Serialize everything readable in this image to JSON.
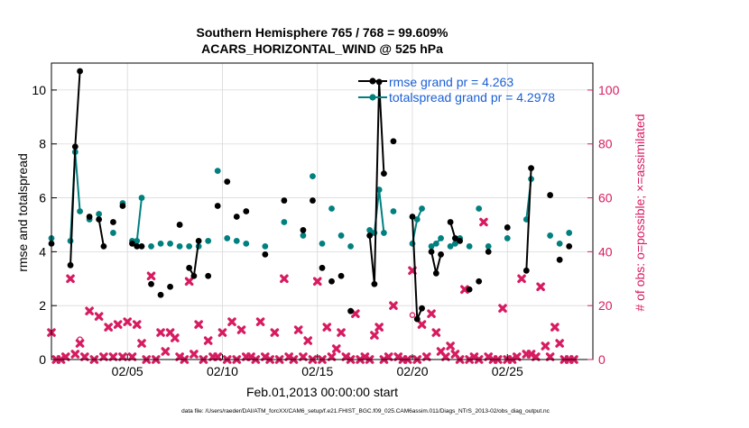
{
  "chart_data": {
    "type": "scatter",
    "title_line1": "Southern Hemisphere 765 / 768 = 99.609%",
    "title_line2": "ACARS_HORIZONTAL_WIND @ 525 hPa",
    "xlabel": "Feb.01,2013 00:00:00 start",
    "ylabel_left": "rmse and totalspread",
    "ylabel_right": "# of obs: o=possible; ×=assimilated",
    "xlim": [
      1,
      29.5
    ],
    "ylim_left": [
      0,
      11
    ],
    "ylim_right": [
      0,
      110
    ],
    "x_ticks": [
      {
        "x": 5,
        "label": "02/05"
      },
      {
        "x": 10,
        "label": "02/10"
      },
      {
        "x": 15,
        "label": "02/15"
      },
      {
        "x": 20,
        "label": "02/20"
      },
      {
        "x": 25,
        "label": "02/25"
      }
    ],
    "y_ticks_left": [
      "0",
      "2",
      "4",
      "6",
      "8",
      "10"
    ],
    "y_ticks_right": [
      "0",
      "20",
      "40",
      "60",
      "80",
      "100"
    ],
    "grid": true,
    "legend_position": "top-right",
    "colors": {
      "rmse": "#000000",
      "spread": "#00807f",
      "obs": "#d81b60",
      "axis_right": "#d81b60"
    },
    "series": [
      {
        "name": "rmse grand pr = 4.263",
        "color": "#000000",
        "axis": "left",
        "points": [
          [
            1.0,
            4.3
          ],
          [
            2.0,
            3.5
          ],
          [
            2.25,
            7.9
          ],
          [
            2.5,
            10.7
          ],
          [
            3.0,
            5.3
          ],
          [
            3.5,
            5.2
          ],
          [
            3.75,
            4.2
          ],
          [
            4.25,
            5.1
          ],
          [
            4.75,
            5.7
          ],
          [
            5.25,
            4.3
          ],
          [
            5.5,
            4.2
          ],
          [
            5.75,
            4.2
          ],
          [
            6.25,
            2.8
          ],
          [
            6.75,
            2.4
          ],
          [
            7.25,
            2.7
          ],
          [
            7.75,
            5.0
          ],
          [
            8.25,
            3.4
          ],
          [
            8.5,
            3.1
          ],
          [
            8.75,
            4.4
          ],
          [
            9.25,
            3.1
          ],
          [
            9.75,
            5.7
          ],
          [
            10.25,
            6.6
          ],
          [
            10.75,
            5.3
          ],
          [
            11.25,
            5.5
          ],
          [
            12.25,
            3.9
          ],
          [
            13.25,
            5.9
          ],
          [
            14.25,
            4.8
          ],
          [
            14.75,
            5.9
          ],
          [
            15.25,
            3.4
          ],
          [
            15.75,
            2.9
          ],
          [
            16.25,
            3.1
          ],
          [
            16.75,
            1.8
          ],
          [
            17.75,
            4.6
          ],
          [
            18.0,
            2.8
          ],
          [
            18.25,
            10.3
          ],
          [
            18.5,
            6.9
          ],
          [
            19.0,
            8.1
          ],
          [
            20.0,
            5.3
          ],
          [
            20.25,
            1.5
          ],
          [
            20.5,
            1.9
          ],
          [
            21.0,
            4.0
          ],
          [
            21.25,
            3.2
          ],
          [
            21.5,
            3.9
          ],
          [
            22.0,
            5.1
          ],
          [
            22.25,
            4.5
          ],
          [
            22.5,
            4.4
          ],
          [
            23.0,
            2.6
          ],
          [
            23.5,
            2.9
          ],
          [
            24.0,
            4.0
          ],
          [
            25.0,
            4.9
          ],
          [
            26.0,
            3.3
          ],
          [
            26.25,
            7.1
          ],
          [
            27.25,
            6.1
          ],
          [
            27.75,
            3.7
          ],
          [
            28.25,
            4.2
          ]
        ]
      },
      {
        "name": "totalspread grand pr = 4.2978",
        "color": "#00807f",
        "axis": "left",
        "points": [
          [
            1.0,
            4.5
          ],
          [
            2.0,
            4.4
          ],
          [
            2.25,
            7.7
          ],
          [
            2.5,
            5.5
          ],
          [
            3.0,
            5.2
          ],
          [
            3.5,
            5.4
          ],
          [
            4.25,
            4.7
          ],
          [
            4.75,
            5.8
          ],
          [
            5.25,
            4.4
          ],
          [
            5.5,
            4.4
          ],
          [
            5.75,
            6.0
          ],
          [
            6.25,
            4.2
          ],
          [
            6.75,
            4.3
          ],
          [
            7.25,
            4.3
          ],
          [
            7.75,
            4.2
          ],
          [
            8.25,
            4.2
          ],
          [
            8.75,
            4.2
          ],
          [
            9.25,
            4.4
          ],
          [
            9.75,
            7.0
          ],
          [
            10.25,
            4.5
          ],
          [
            10.75,
            4.4
          ],
          [
            11.25,
            4.3
          ],
          [
            12.25,
            4.2
          ],
          [
            13.25,
            5.1
          ],
          [
            14.25,
            4.6
          ],
          [
            14.75,
            6.8
          ],
          [
            15.25,
            4.3
          ],
          [
            15.75,
            5.6
          ],
          [
            16.25,
            4.6
          ],
          [
            16.75,
            4.2
          ],
          [
            17.75,
            4.8
          ],
          [
            18.0,
            4.7
          ],
          [
            18.25,
            6.3
          ],
          [
            18.5,
            4.7
          ],
          [
            19.0,
            5.5
          ],
          [
            20.0,
            4.3
          ],
          [
            20.25,
            5.2
          ],
          [
            20.5,
            5.6
          ],
          [
            21.0,
            4.2
          ],
          [
            21.25,
            4.3
          ],
          [
            21.5,
            4.5
          ],
          [
            22.0,
            4.2
          ],
          [
            22.25,
            4.3
          ],
          [
            22.5,
            4.5
          ],
          [
            23.0,
            4.2
          ],
          [
            23.5,
            5.6
          ],
          [
            24.0,
            4.2
          ],
          [
            25.0,
            4.5
          ],
          [
            26.0,
            5.2
          ],
          [
            26.25,
            6.7
          ],
          [
            27.25,
            4.6
          ],
          [
            27.75,
            4.3
          ],
          [
            28.25,
            4.7
          ]
        ]
      },
      {
        "name": "obs possible",
        "color": "#d81b60",
        "axis": "right",
        "marker": "o",
        "points": [
          [
            2.5,
            7.5
          ],
          [
            20.0,
            16.5
          ]
        ]
      },
      {
        "name": "obs assimilated",
        "color": "#d81b60",
        "axis": "right",
        "marker": "x",
        "points": [
          [
            1.0,
            10
          ],
          [
            1.25,
            0
          ],
          [
            1.5,
            0
          ],
          [
            1.75,
            1
          ],
          [
            2.0,
            30
          ],
          [
            2.25,
            2
          ],
          [
            2.5,
            6
          ],
          [
            2.75,
            1
          ],
          [
            3.0,
            18
          ],
          [
            3.25,
            0
          ],
          [
            3.5,
            16
          ],
          [
            3.75,
            1
          ],
          [
            4.0,
            12
          ],
          [
            4.25,
            1
          ],
          [
            4.5,
            13
          ],
          [
            4.75,
            1
          ],
          [
            5.0,
            14
          ],
          [
            5.25,
            1
          ],
          [
            5.5,
            13
          ],
          [
            5.75,
            6
          ],
          [
            6.0,
            0
          ],
          [
            6.25,
            31
          ],
          [
            6.5,
            0
          ],
          [
            6.75,
            10
          ],
          [
            7.0,
            3
          ],
          [
            7.25,
            10
          ],
          [
            7.5,
            8
          ],
          [
            7.75,
            1
          ],
          [
            8.0,
            0
          ],
          [
            8.25,
            29
          ],
          [
            8.5,
            2
          ],
          [
            8.75,
            13
          ],
          [
            9.0,
            0
          ],
          [
            9.25,
            7
          ],
          [
            9.5,
            1
          ],
          [
            9.75,
            1
          ],
          [
            10.0,
            10
          ],
          [
            10.25,
            0
          ],
          [
            10.5,
            14
          ],
          [
            10.75,
            0
          ],
          [
            11.0,
            11
          ],
          [
            11.25,
            1
          ],
          [
            11.5,
            1
          ],
          [
            11.75,
            0
          ],
          [
            12.0,
            14
          ],
          [
            12.25,
            1
          ],
          [
            12.5,
            0
          ],
          [
            12.75,
            10
          ],
          [
            13.0,
            0
          ],
          [
            13.25,
            30
          ],
          [
            13.5,
            1
          ],
          [
            13.75,
            0
          ],
          [
            14.0,
            11
          ],
          [
            14.25,
            1
          ],
          [
            14.5,
            7
          ],
          [
            14.75,
            0
          ],
          [
            15.0,
            29
          ],
          [
            15.25,
            0
          ],
          [
            15.5,
            12
          ],
          [
            15.75,
            1
          ],
          [
            16.0,
            4
          ],
          [
            16.25,
            10
          ],
          [
            16.5,
            1
          ],
          [
            16.75,
            0
          ],
          [
            17.0,
            17
          ],
          [
            17.25,
            0
          ],
          [
            17.5,
            1
          ],
          [
            17.75,
            0
          ],
          [
            18.0,
            9
          ],
          [
            18.25,
            12
          ],
          [
            18.5,
            0
          ],
          [
            18.75,
            1
          ],
          [
            19.0,
            20
          ],
          [
            19.25,
            1
          ],
          [
            19.5,
            0
          ],
          [
            19.75,
            0
          ],
          [
            20.0,
            33
          ],
          [
            20.25,
            0
          ],
          [
            20.5,
            13
          ],
          [
            20.75,
            1
          ],
          [
            21.0,
            17
          ],
          [
            21.25,
            10
          ],
          [
            21.5,
            3
          ],
          [
            21.75,
            1
          ],
          [
            22.0,
            5
          ],
          [
            22.25,
            2
          ],
          [
            22.5,
            0
          ],
          [
            22.75,
            26
          ],
          [
            23.0,
            0
          ],
          [
            23.25,
            1
          ],
          [
            23.5,
            0
          ],
          [
            23.75,
            51
          ],
          [
            24.0,
            1
          ],
          [
            24.25,
            0
          ],
          [
            24.5,
            0
          ],
          [
            24.75,
            19
          ],
          [
            25.0,
            0
          ],
          [
            25.25,
            0
          ],
          [
            25.5,
            1
          ],
          [
            25.75,
            30
          ],
          [
            26.0,
            2
          ],
          [
            26.25,
            2
          ],
          [
            26.5,
            1
          ],
          [
            26.75,
            27
          ],
          [
            27.0,
            5
          ],
          [
            27.25,
            1
          ],
          [
            27.5,
            12
          ],
          [
            27.75,
            6
          ],
          [
            28.0,
            0
          ],
          [
            28.25,
            0
          ],
          [
            28.5,
            0
          ]
        ]
      }
    ],
    "legend": [
      {
        "label": "rmse grand pr = 4.263",
        "series": "rmse"
      },
      {
        "label": "totalspread grand pr = 4.2978",
        "series": "spread"
      }
    ]
  },
  "footer": {
    "data_file": "data file: /Users/raeder/DAI/ATM_forcXX/CAM6_setup/f.e21.FHIST_BGC.f09_025.CAM6assim.011/Diags_NTrS_2013-02/obs_diag_output.nc"
  }
}
